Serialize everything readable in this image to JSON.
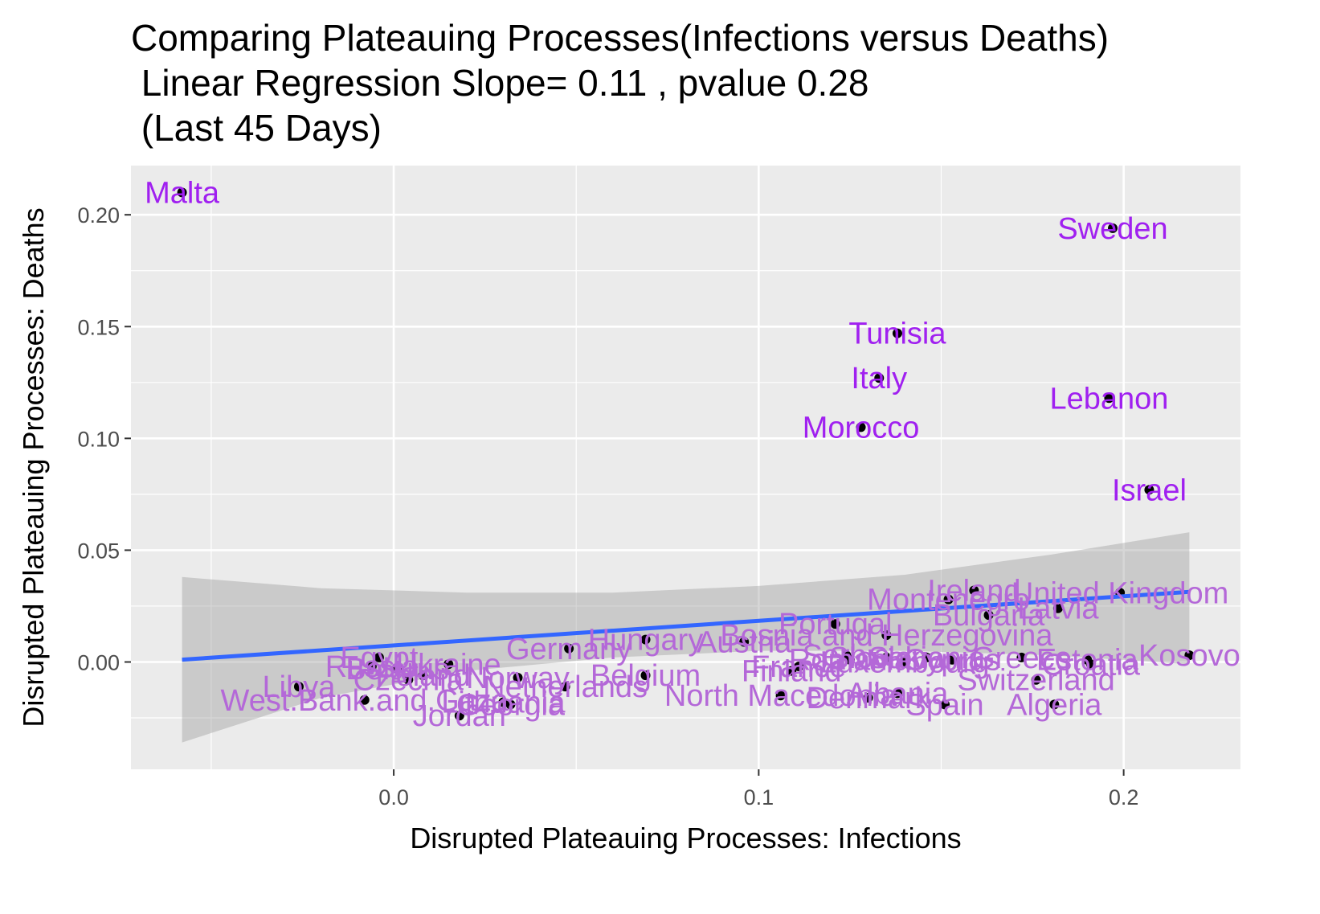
{
  "title_lines": [
    "Comparing Plateauing Processes(Infections versus Deaths)",
    " Linear Regression Slope= 0.11 , pvalue 0.28",
    " (Last 45 Days)"
  ],
  "chart_data": {
    "type": "scatter",
    "title": "Comparing Plateauing Processes(Infections versus Deaths)\n Linear Regression Slope= 0.11 , pvalue 0.28\n (Last 45 Days)",
    "xlabel": "Disrupted Plateauing Processes: Infections",
    "ylabel": "Disrupted Plateauing Processes: Deaths",
    "xlim": [
      -0.072,
      0.232
    ],
    "ylim": [
      -0.048,
      0.222
    ],
    "x_ticks": [
      {
        "value": 0.0,
        "label": "0.0"
      },
      {
        "value": 0.1,
        "label": "0.1"
      },
      {
        "value": 0.2,
        "label": "0.2"
      }
    ],
    "y_ticks": [
      {
        "value": 0.0,
        "label": "0.00"
      },
      {
        "value": 0.05,
        "label": "0.05"
      },
      {
        "value": 0.1,
        "label": "0.10"
      },
      {
        "value": 0.15,
        "label": "0.15"
      },
      {
        "value": 0.2,
        "label": "0.20"
      }
    ],
    "grid": true,
    "regression": {
      "slope": 0.11,
      "pvalue": 0.28,
      "x_range": [
        -0.058,
        0.218
      ],
      "intercept": 0.0074
    },
    "confidence_band": [
      {
        "x": -0.058,
        "lo": -0.036,
        "hi": 0.038
      },
      {
        "x": -0.02,
        "lo": -0.016,
        "hi": 0.033
      },
      {
        "x": 0.02,
        "lo": -0.004,
        "hi": 0.031
      },
      {
        "x": 0.06,
        "lo": 0.002,
        "hi": 0.031
      },
      {
        "x": 0.1,
        "lo": 0.005,
        "hi": 0.034
      },
      {
        "x": 0.14,
        "lo": 0.005,
        "hi": 0.039
      },
      {
        "x": 0.18,
        "lo": 0.003,
        "hi": 0.048
      },
      {
        "x": 0.218,
        "lo": -0.001,
        "hi": 0.058
      }
    ],
    "points": [
      {
        "label": "Malta",
        "x": -0.058,
        "y": 0.21
      },
      {
        "label": "Sweden",
        "x": 0.197,
        "y": 0.194
      },
      {
        "label": "Tunisia",
        "x": 0.138,
        "y": 0.147
      },
      {
        "label": "Italy",
        "x": 0.133,
        "y": 0.127
      },
      {
        "label": "Lebanon",
        "x": 0.196,
        "y": 0.118
      },
      {
        "label": "Morocco",
        "x": 0.128,
        "y": 0.105
      },
      {
        "label": "Israel",
        "x": 0.207,
        "y": 0.077
      },
      {
        "label": "United Kingdom",
        "x": 0.199,
        "y": 0.031
      },
      {
        "label": "Ireland",
        "x": 0.159,
        "y": 0.032
      },
      {
        "label": "Montenegro",
        "x": 0.152,
        "y": 0.028
      },
      {
        "label": "Latvia",
        "x": 0.182,
        "y": 0.024
      },
      {
        "label": "Bulgaria",
        "x": 0.163,
        "y": 0.021
      },
      {
        "label": "Portugal",
        "x": 0.121,
        "y": 0.017
      },
      {
        "label": "Bosnia and Herzegovina",
        "x": 0.135,
        "y": 0.012
      },
      {
        "label": "Austria",
        "x": 0.096,
        "y": 0.009
      },
      {
        "label": "Hungary",
        "x": 0.069,
        "y": 0.01
      },
      {
        "label": "Germany",
        "x": 0.048,
        "y": 0.006
      },
      {
        "label": "Kosovo",
        "x": 0.218,
        "y": 0.003
      },
      {
        "label": "Estonia",
        "x": 0.19,
        "y": 0.001
      },
      {
        "label": "Croatia",
        "x": 0.191,
        "y": -0.001
      },
      {
        "label": "Greece",
        "x": 0.172,
        "y": 0.002
      },
      {
        "label": "Serbia",
        "x": 0.124,
        "y": 0.003
      },
      {
        "label": "Romania",
        "x": 0.125,
        "y": 0.001
      },
      {
        "label": "Slovakia",
        "x": 0.135,
        "y": 0.002
      },
      {
        "label": "Slovenia",
        "x": 0.146,
        "y": 0.002
      },
      {
        "label": "Cyprus",
        "x": 0.153,
        "y": 0.001
      },
      {
        "label": "Luxembourg",
        "x": 0.14,
        "y": 0.0
      },
      {
        "label": "France",
        "x": 0.111,
        "y": -0.002
      },
      {
        "label": "Finland",
        "x": 0.109,
        "y": -0.004
      },
      {
        "label": "Switzerland",
        "x": 0.176,
        "y": -0.008
      },
      {
        "label": "Belgium",
        "x": 0.069,
        "y": -0.006
      },
      {
        "label": "Netherlands",
        "x": 0.047,
        "y": -0.011
      },
      {
        "label": "Norway",
        "x": 0.034,
        "y": -0.007
      },
      {
        "label": "Ukraine",
        "x": 0.015,
        "y": -0.001
      },
      {
        "label": "Egypt",
        "x": -0.004,
        "y": 0.002
      },
      {
        "label": "Russia",
        "x": -0.006,
        "y": -0.002
      },
      {
        "label": "Belarus",
        "x": 0.001,
        "y": -0.003
      },
      {
        "label": "Poland",
        "x": 0.008,
        "y": -0.006
      },
      {
        "label": "Czechia",
        "x": 0.004,
        "y": -0.008
      },
      {
        "label": "Libya",
        "x": -0.026,
        "y": -0.011
      },
      {
        "label": "West.Bank.and.Gaza",
        "x": -0.008,
        "y": -0.017
      },
      {
        "label": "Lithuania",
        "x": 0.03,
        "y": -0.018
      },
      {
        "label": "Georgia",
        "x": 0.032,
        "y": -0.019
      },
      {
        "label": "Jordan",
        "x": 0.018,
        "y": -0.024
      },
      {
        "label": "North Macedonia",
        "x": 0.106,
        "y": -0.015
      },
      {
        "label": "Denmark",
        "x": 0.13,
        "y": -0.016
      },
      {
        "label": "Albania",
        "x": 0.138,
        "y": -0.014
      },
      {
        "label": "Spain",
        "x": 0.151,
        "y": -0.019
      },
      {
        "label": "Algeria",
        "x": 0.181,
        "y": -0.019
      }
    ],
    "colors": {
      "panel": "#ebebeb",
      "grid": "#ffffff",
      "point": "#000000",
      "fit_line": "#3366ff",
      "band": "#999999",
      "label_dark": "#a020f0",
      "label_light": "#b468d8"
    }
  }
}
